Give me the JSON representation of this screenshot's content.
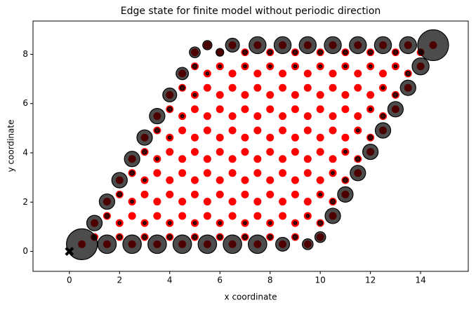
{
  "chart_data": {
    "type": "scatter",
    "title": "Edge state for finite model without periodic direction",
    "xlabel": "x coordinate",
    "ylabel": "y coordinate",
    "xlim": [
      -1.45,
      15.9
    ],
    "ylim": [
      -0.81,
      9.35
    ],
    "xticks": [
      0,
      2,
      4,
      6,
      8,
      10,
      12,
      14
    ],
    "yticks": [
      0,
      2,
      4,
      6,
      8
    ],
    "site_color": "red",
    "edge_color": "black",
    "origin": {
      "x": 0,
      "y": 0
    },
    "x": [
      0.5,
      1,
      1.5,
      2,
      2.5,
      3,
      3.5,
      4,
      4.5,
      5,
      5.5,
      6,
      6.5,
      7,
      7.5,
      8,
      8.5,
      9,
      9.5,
      10,
      1,
      1.5,
      2,
      2.5,
      3,
      3.5,
      4,
      4.5,
      5,
      5.5,
      6,
      6.5,
      7,
      7.5,
      8,
      8.5,
      9,
      9.5,
      10,
      10.5,
      1.5,
      2,
      2.5,
      3,
      3.5,
      4,
      4.5,
      5,
      5.5,
      6,
      6.5,
      7,
      7.5,
      8,
      8.5,
      9,
      9.5,
      10,
      10.5,
      11,
      2,
      2.5,
      3,
      3.5,
      4,
      4.5,
      5,
      5.5,
      6,
      6.5,
      7,
      7.5,
      8,
      8.5,
      9,
      9.5,
      10,
      10.5,
      11,
      11.5,
      2.5,
      3,
      3.5,
      4,
      4.5,
      5,
      5.5,
      6,
      6.5,
      7,
      7.5,
      8,
      8.5,
      9,
      9.5,
      10,
      10.5,
      11,
      11.5,
      12,
      3,
      3.5,
      4,
      4.5,
      5,
      5.5,
      6,
      6.5,
      7,
      7.5,
      8,
      8.5,
      9,
      9.5,
      10,
      10.5,
      11,
      11.5,
      12,
      12.5,
      3.5,
      4,
      4.5,
      5,
      5.5,
      6,
      6.5,
      7,
      7.5,
      8,
      8.5,
      9,
      9.5,
      10,
      10.5,
      11,
      11.5,
      12,
      12.5,
      13,
      4,
      4.5,
      5,
      5.5,
      6,
      6.5,
      7,
      7.5,
      8,
      8.5,
      9,
      9.5,
      10,
      10.5,
      11,
      11.5,
      12,
      12.5,
      13,
      13.5,
      4.5,
      5,
      5.5,
      6,
      6.5,
      7,
      7.5,
      8,
      8.5,
      9,
      9.5,
      10,
      10.5,
      11,
      11.5,
      12,
      12.5,
      13,
      13.5,
      14,
      5,
      5.5,
      6,
      6.5,
      7,
      7.5,
      8,
      8.5,
      9,
      9.5,
      10,
      10.5,
      11,
      11.5,
      12,
      12.5,
      13,
      13.5,
      14,
      14.5
    ],
    "y": [
      0.29,
      0.58,
      0.29,
      0.58,
      0.29,
      0.58,
      0.29,
      0.58,
      0.29,
      0.58,
      0.29,
      0.58,
      0.29,
      0.58,
      0.29,
      0.58,
      0.29,
      0.58,
      0.29,
      0.58,
      1.15,
      1.44,
      1.15,
      1.44,
      1.15,
      1.44,
      1.15,
      1.44,
      1.15,
      1.44,
      1.15,
      1.44,
      1.15,
      1.44,
      1.15,
      1.44,
      1.15,
      1.44,
      1.15,
      1.44,
      2.02,
      2.31,
      2.02,
      2.31,
      2.02,
      2.31,
      2.02,
      2.31,
      2.02,
      2.31,
      2.02,
      2.31,
      2.02,
      2.31,
      2.02,
      2.31,
      2.02,
      2.31,
      2.02,
      2.31,
      2.89,
      3.18,
      2.89,
      3.18,
      2.89,
      3.18,
      2.89,
      3.18,
      2.89,
      3.18,
      2.89,
      3.18,
      2.89,
      3.18,
      2.89,
      3.18,
      2.89,
      3.18,
      2.89,
      3.18,
      3.75,
      4.04,
      3.75,
      4.04,
      3.75,
      4.04,
      3.75,
      4.04,
      3.75,
      4.04,
      3.75,
      4.04,
      3.75,
      4.04,
      3.75,
      4.04,
      3.75,
      4.04,
      3.75,
      4.04,
      4.62,
      4.91,
      4.62,
      4.91,
      4.62,
      4.91,
      4.62,
      4.91,
      4.62,
      4.91,
      4.62,
      4.91,
      4.62,
      4.91,
      4.62,
      4.91,
      4.62,
      4.91,
      4.62,
      4.91,
      5.49,
      5.77,
      5.49,
      5.77,
      5.49,
      5.77,
      5.49,
      5.77,
      5.49,
      5.77,
      5.49,
      5.77,
      5.49,
      5.77,
      5.49,
      5.77,
      5.49,
      5.77,
      5.49,
      5.77,
      6.35,
      6.64,
      6.35,
      6.64,
      6.35,
      6.64,
      6.35,
      6.64,
      6.35,
      6.64,
      6.35,
      6.64,
      6.35,
      6.64,
      6.35,
      6.64,
      6.35,
      6.64,
      6.35,
      6.64,
      7.22,
      7.51,
      7.22,
      7.51,
      7.22,
      7.51,
      7.22,
      7.51,
      7.22,
      7.51,
      7.22,
      7.51,
      7.22,
      7.51,
      7.22,
      7.51,
      7.22,
      7.51,
      7.22,
      7.51,
      8.08,
      8.37,
      8.08,
      8.37,
      8.08,
      8.37,
      8.08,
      8.37,
      8.08,
      8.37,
      8.08,
      8.37,
      8.08,
      8.37,
      8.08,
      8.37,
      8.08,
      8.37,
      8.08,
      8.37
    ],
    "edge_weights": [
      1,
      0.15,
      0.6,
      0.15,
      0.6,
      0.15,
      0.6,
      0.15,
      0.6,
      0.15,
      0.6,
      0.15,
      0.6,
      0.15,
      0.6,
      0.15,
      0.45,
      0.15,
      0.35,
      0.35,
      0.5,
      0.15,
      0.1,
      0,
      0.1,
      0,
      0.1,
      0,
      0.1,
      0,
      0.1,
      0,
      0.1,
      0,
      0.1,
      0,
      0.1,
      0.1,
      0.15,
      0.5,
      0.5,
      0.15,
      0.1,
      0,
      0,
      0,
      0,
      0,
      0,
      0,
      0,
      0,
      0,
      0,
      0,
      0,
      0,
      0.1,
      0.15,
      0.5,
      0.5,
      0.15,
      0.1,
      0,
      0,
      0,
      0,
      0,
      0,
      0,
      0,
      0,
      0,
      0,
      0,
      0,
      0,
      0.1,
      0.15,
      0.5,
      0.5,
      0.15,
      0.1,
      0,
      0,
      0,
      0,
      0,
      0,
      0,
      0,
      0,
      0,
      0,
      0,
      0,
      0,
      0.1,
      0.15,
      0.5,
      0.5,
      0.15,
      0.1,
      0,
      0,
      0,
      0,
      0,
      0,
      0,
      0,
      0,
      0,
      0,
      0,
      0,
      0,
      0.1,
      0.15,
      0.5,
      0.5,
      0.15,
      0.1,
      0,
      0,
      0,
      0,
      0,
      0,
      0,
      0,
      0,
      0,
      0,
      0,
      0,
      0,
      0.1,
      0.15,
      0.5,
      0.45,
      0.15,
      0.1,
      0,
      0,
      0,
      0,
      0,
      0,
      0,
      0,
      0,
      0,
      0,
      0,
      0,
      0,
      0.1,
      0.15,
      0.5,
      0.4,
      0.15,
      0.1,
      0.1,
      0,
      0.1,
      0,
      0.1,
      0,
      0.1,
      0,
      0.1,
      0,
      0.1,
      0,
      0.1,
      0,
      0.1,
      0.15,
      0.55,
      0.35,
      0.3,
      0.25,
      0.45,
      0.15,
      0.55,
      0.15,
      0.55,
      0.15,
      0.55,
      0.15,
      0.55,
      0.15,
      0.55,
      0.15,
      0.55,
      0.15,
      0.55,
      0.15,
      1
    ]
  }
}
